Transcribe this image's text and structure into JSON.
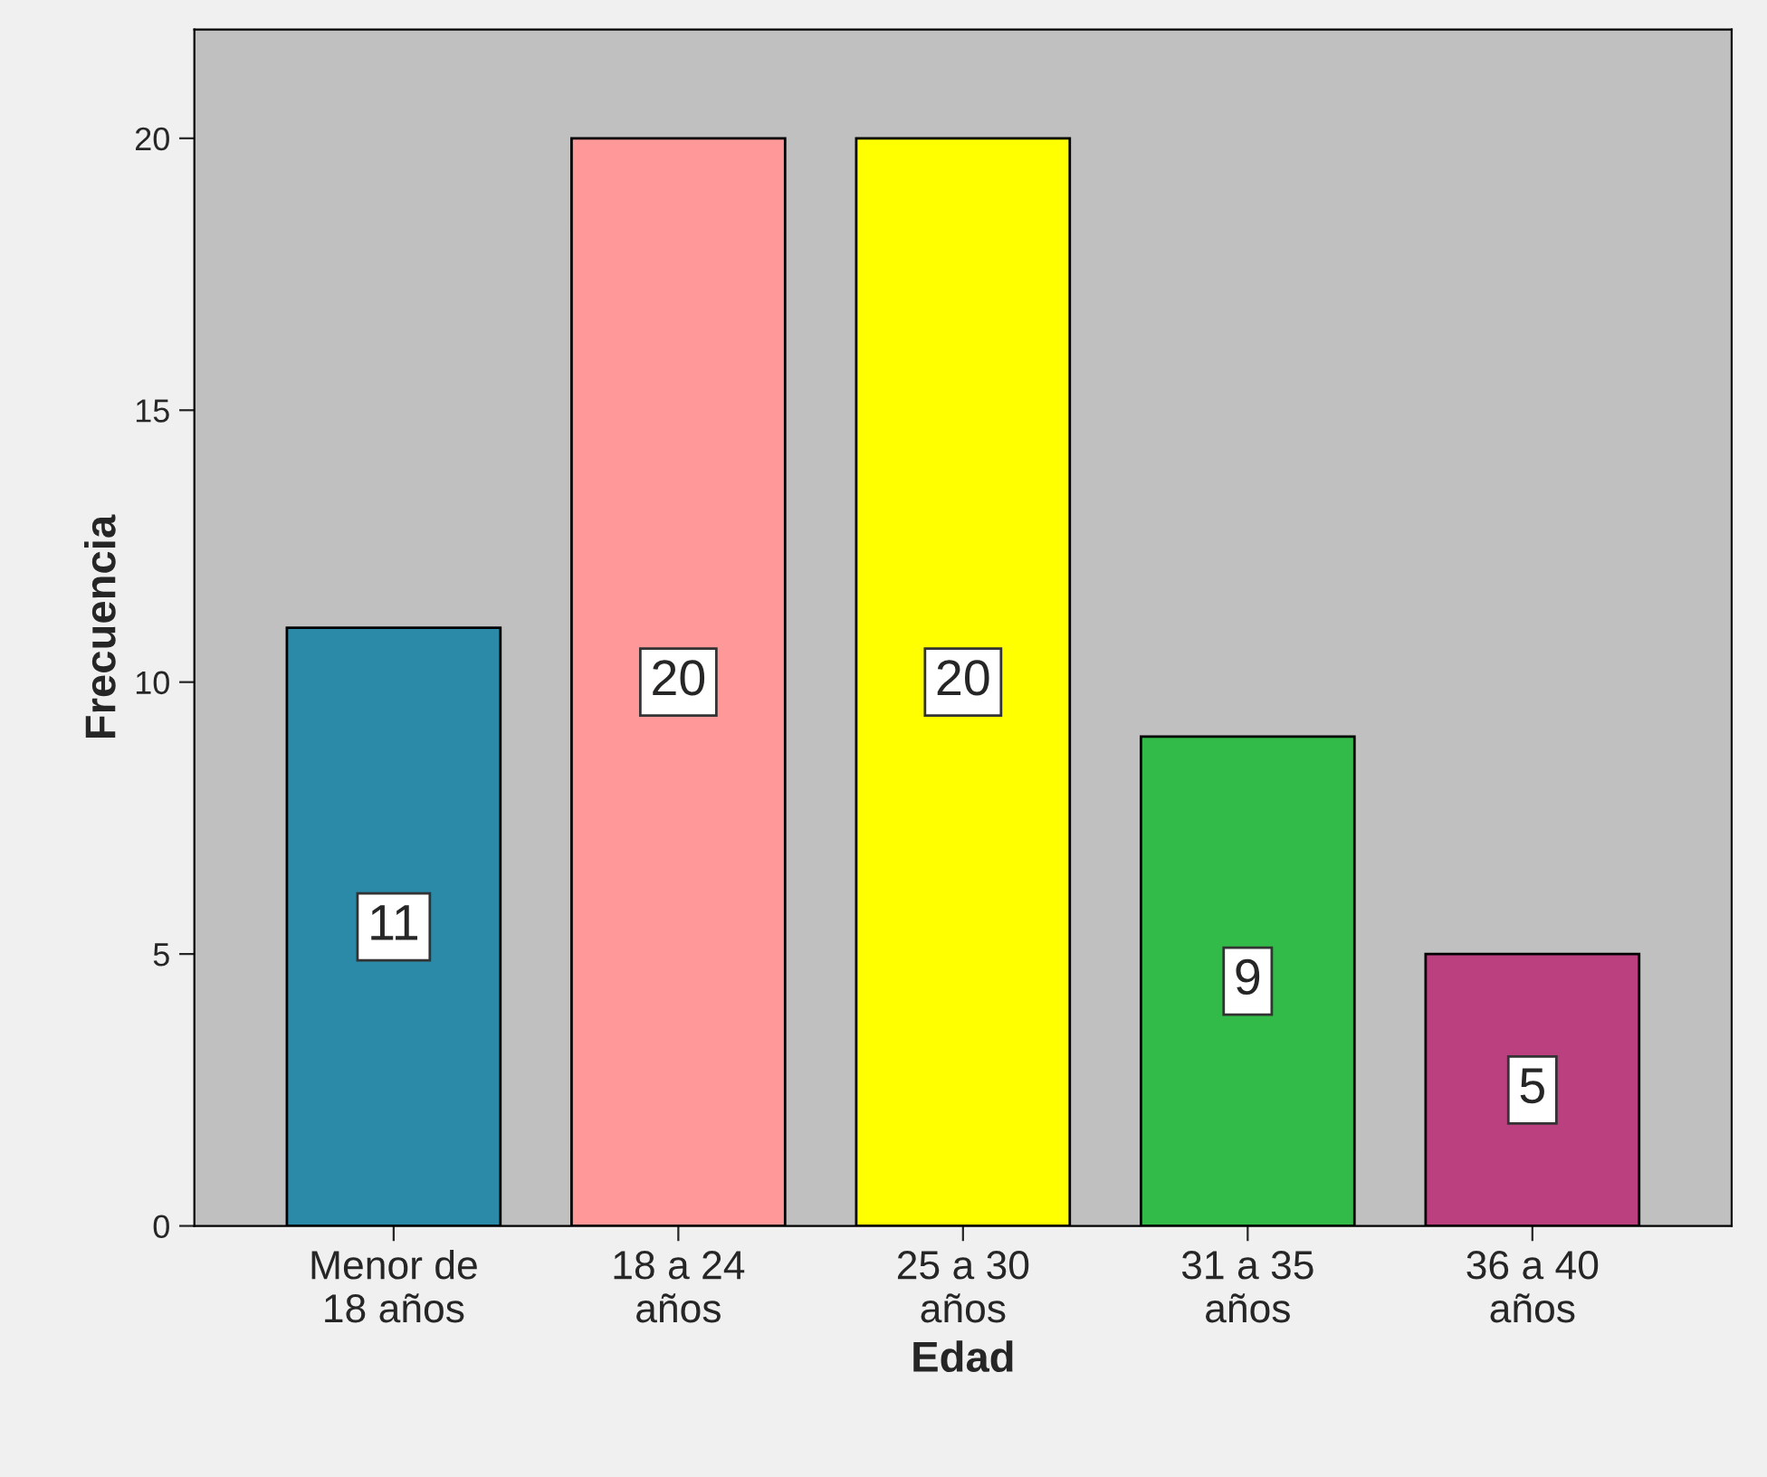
{
  "chart_data": {
    "type": "bar",
    "xlabel": "Edad",
    "ylabel": "Frecuencia",
    "categories": [
      "Menor de\n18 años",
      "18 a 24\naños",
      "25 a 30\naños",
      "31 a 35\naños",
      "36 a 40\naños"
    ],
    "values": [
      11,
      20,
      20,
      9,
      5
    ],
    "colors": [
      "#2a8aa8",
      "#ff9999",
      "#ffff00",
      "#33bb4a",
      "#bb4080"
    ],
    "ylim": [
      0,
      22
    ],
    "yticks": [
      0,
      5,
      10,
      15,
      20
    ],
    "grid": false,
    "data_labels": true
  }
}
